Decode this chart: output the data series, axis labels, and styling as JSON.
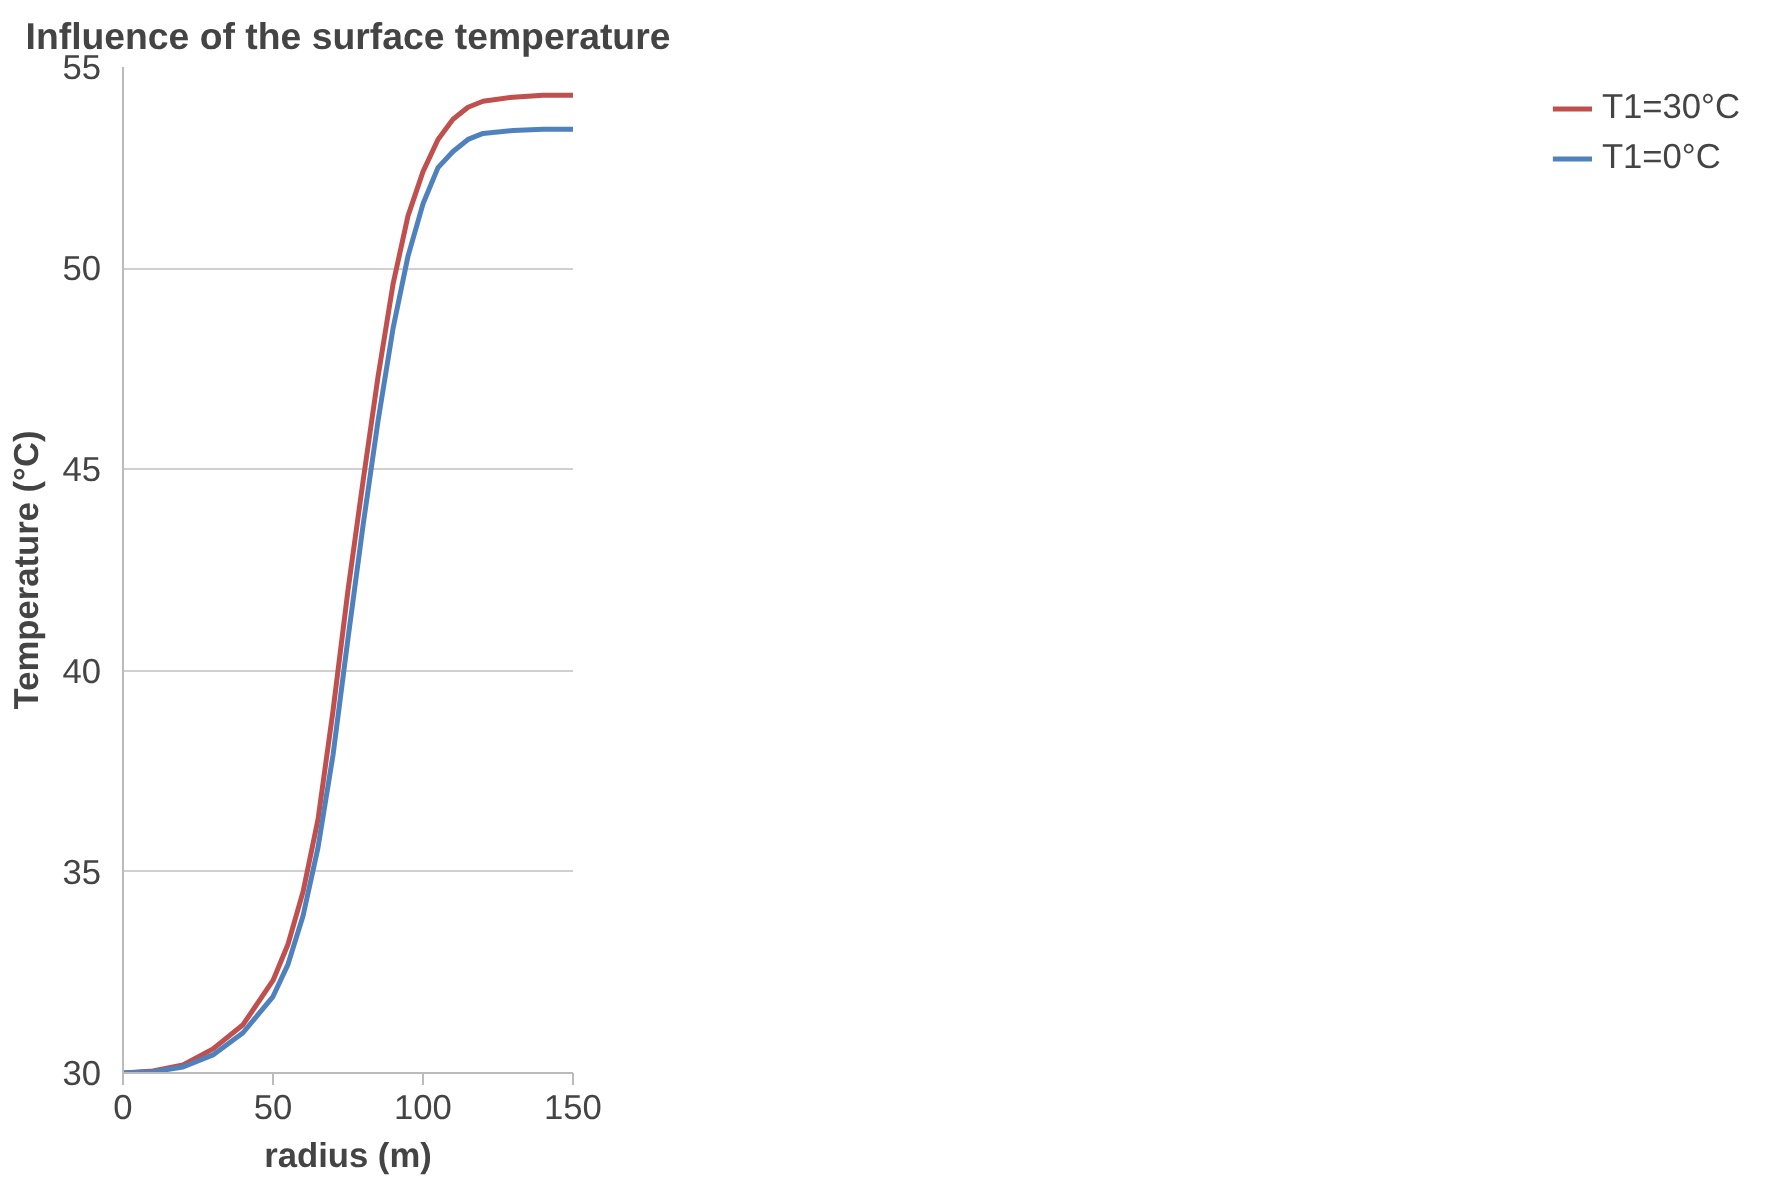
{
  "chart_data": {
    "type": "line",
    "title": "Influence of the surface temperature",
    "xlabel": "radius (m)",
    "ylabel": "Temperature (°C)",
    "x": [
      0,
      10,
      20,
      30,
      40,
      50,
      55,
      60,
      65,
      70,
      75,
      80,
      85,
      90,
      95,
      100,
      105,
      110,
      115,
      120,
      130,
      140,
      150
    ],
    "series": [
      {
        "name": "T1=30°C",
        "color": "#c0504d",
        "values": [
          30,
          30.05,
          30.2,
          30.6,
          31.2,
          32.3,
          33.2,
          34.5,
          36.3,
          39.0,
          42.0,
          44.7,
          47.3,
          49.6,
          51.3,
          52.4,
          53.2,
          53.7,
          54.0,
          54.15,
          54.25,
          54.3,
          54.3
        ]
      },
      {
        "name": "T1=0°C",
        "color": "#4f81bd",
        "values": [
          30,
          30.03,
          30.15,
          30.45,
          31.0,
          31.9,
          32.7,
          33.9,
          35.6,
          37.9,
          40.8,
          43.6,
          46.2,
          48.5,
          50.3,
          51.6,
          52.5,
          52.9,
          53.2,
          53.35,
          53.42,
          53.45,
          53.45
        ]
      }
    ],
    "xlim": [
      0,
      150
    ],
    "xticks": [
      0,
      50,
      100,
      150
    ],
    "ylim": [
      30,
      55
    ],
    "yticks": [
      30,
      35,
      40,
      45,
      50,
      55
    ],
    "grid": "y",
    "legend": "right",
    "marker": "none",
    "line_style": "solid"
  }
}
